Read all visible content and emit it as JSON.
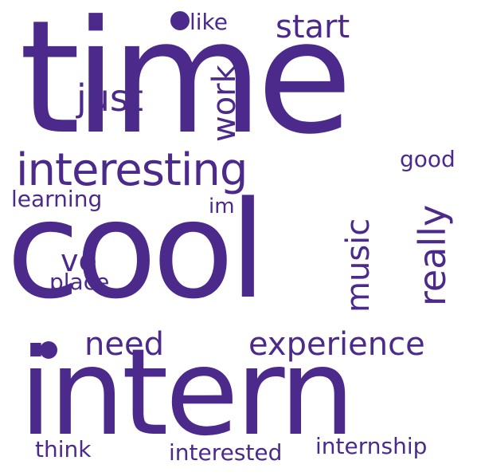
{
  "wordcloud": {
    "text_color": "#4b2a8c",
    "background": "#ffffff",
    "words": {
      "time": "time",
      "cool": "cool",
      "intern": "intern",
      "interesting": "interesting",
      "experience": "experience",
      "need": "need",
      "just": "just",
      "start": "start",
      "like": "like",
      "good": "good",
      "learning": "learning",
      "im": "im",
      "ve": "ve",
      "place": "place",
      "think": "think",
      "interested": "interested",
      "internship": "internship",
      "work": "work",
      "music": "music",
      "really": "really"
    }
  }
}
